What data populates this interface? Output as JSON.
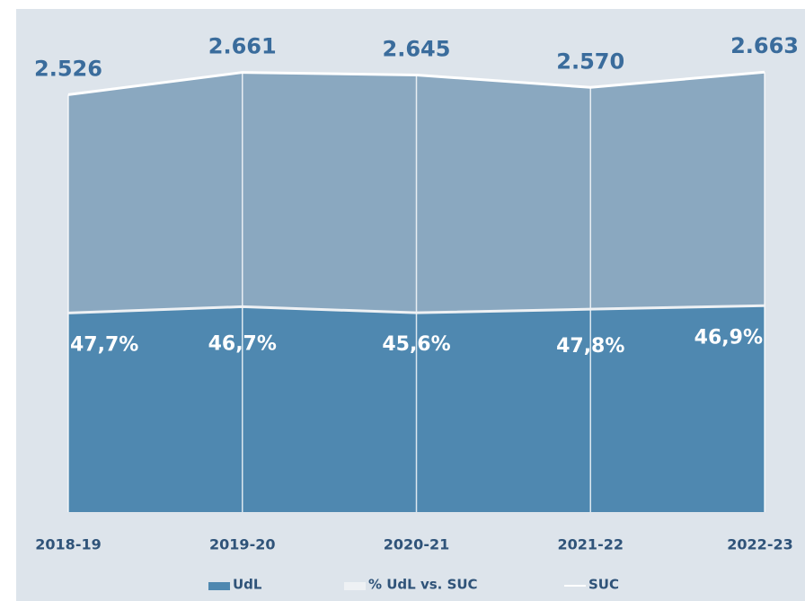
{
  "chart_data": {
    "type": "area",
    "categories": [
      "2018-19",
      "2019-20",
      "2020-21",
      "2021-22",
      "2022-23"
    ],
    "series": [
      {
        "name": "UdL",
        "color": "#4f88b0",
        "values": [
          1205,
          1243,
          1206,
          1228,
          1249
        ]
      },
      {
        "name": "% UdL vs. SUC",
        "color": "#eef1f4",
        "values": [
          47.7,
          46.7,
          45.6,
          47.8,
          46.9
        ],
        "value_labels": [
          "47,7%",
          "46,7%",
          "45,6%",
          "47,8%",
          "46,9%"
        ]
      },
      {
        "name": "SUC",
        "color": "#ffffff",
        "fill": "#8aa8c0",
        "values": [
          2526,
          2661,
          2645,
          2570,
          2663
        ],
        "value_labels": [
          "2.526",
          "2.661",
          "2.645",
          "2.570",
          "2.663"
        ]
      }
    ],
    "ylim": [
      0,
      2800
    ]
  }
}
